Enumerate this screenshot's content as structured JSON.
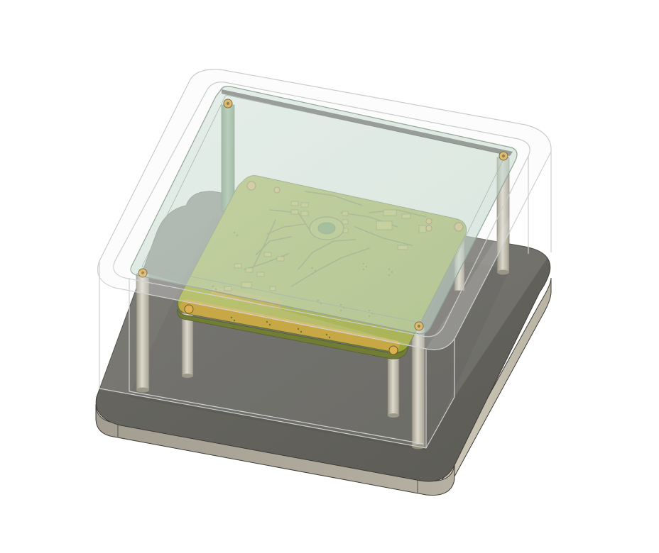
{
  "scene": {
    "background_color": "#ffffff",
    "model": {
      "base_plate": {
        "top_color": "#676660",
        "front_color": "#a8a396",
        "side_color": "#c7c1b2",
        "edge_color": "#3c3b37"
      },
      "enclosure_cover": {
        "fill_color": "#f4f6f5",
        "edge_color": "#c9cdcb"
      },
      "top_glass": {
        "fill_color": "#b8d2c3",
        "edge_color": "#6d8878"
      },
      "standoffs": {
        "fill_color": "#a7a290",
        "highlight_color": "#d8d4c6",
        "count": 8
      },
      "pcb": {
        "board_color": "#8b9f1c",
        "ground_plane_color": "#a6ae2a",
        "copper_color": "#c79a2f",
        "trace_color": "#5d6f1a",
        "mounting_hole_color": "#d9a538"
      }
    }
  }
}
